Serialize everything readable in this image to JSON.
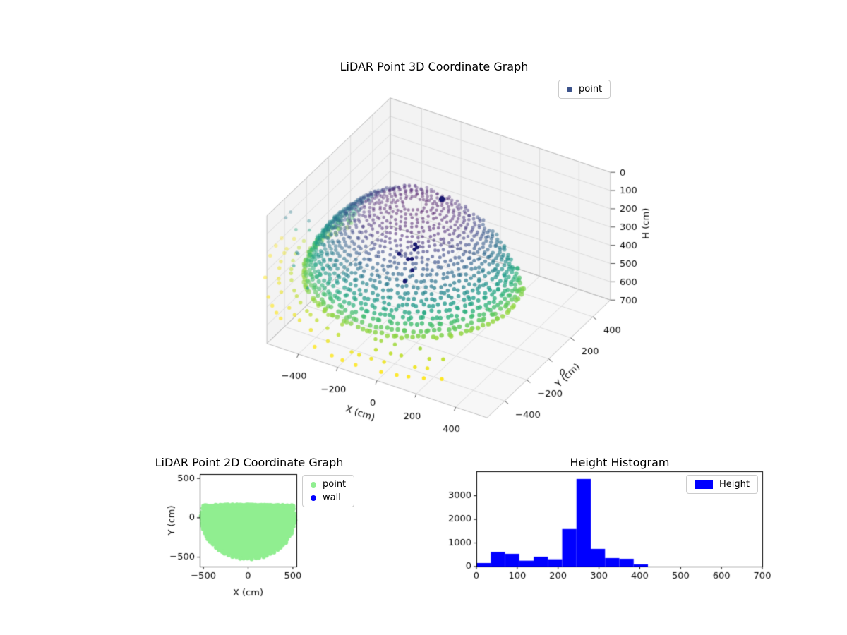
{
  "figure": {
    "background": "#ffffff",
    "colors": {
      "pane": "#f3f3f3",
      "pane_floor": "#f7f7f7",
      "grid": "#dcdcdc",
      "edge": "#bfbfbf",
      "tick": "#555555",
      "text": "#000000"
    }
  },
  "chart_data": [
    {
      "id": "lidar3d",
      "type": "scatter3d",
      "title": "LiDAR Point 3D Coordinate Graph",
      "xlabel": "X (cm)",
      "ylabel": "Y (cm)",
      "zlabel": "H (cm)",
      "xlim": [
        -560,
        560
      ],
      "ylim": [
        -560,
        560
      ],
      "zlim": [
        0,
        700
      ],
      "zaxis_inverted": true,
      "xticks": [
        -400,
        -200,
        0,
        200,
        400
      ],
      "yticks": [
        -400,
        -200,
        0,
        200,
        400
      ],
      "zticks": [
        0,
        100,
        200,
        300,
        400,
        500,
        600,
        700
      ],
      "legend": [
        {
          "label": "point",
          "color": "#3b528b"
        }
      ],
      "colormap": "viridis",
      "color_scale_h": [
        20,
        480
      ],
      "dome": {
        "center": [
          -80,
          -80
        ],
        "radius": 520,
        "apex_h": 35,
        "rim_h": 435,
        "phi_min_deg": 6,
        "phi_max_deg": 70,
        "rings": 24,
        "points_per_ring_max": 130,
        "y_cut": 120
      },
      "floor_arcs": {
        "radii": [
          600,
          655,
          710,
          770
        ],
        "h_start": 445,
        "az_range_deg": [
          185,
          300
        ],
        "step_deg": 5
      },
      "outliers": 9,
      "wall_cluster": {
        "color": "#191970",
        "count": 7,
        "center": [
          -40,
          -140
        ],
        "h_range": [
          200,
          330
        ]
      }
    },
    {
      "id": "lidar2d",
      "type": "scatter2d",
      "title": "LiDAR Point 2D Coordinate Graph",
      "xlabel": "X (cm)",
      "ylabel": "Y (cm)",
      "xlim": [
        -540,
        540
      ],
      "ylim": [
        -620,
        555
      ],
      "xticks": [
        -500,
        0,
        500
      ],
      "yticks": [
        -500,
        0,
        500
      ],
      "legend": [
        {
          "label": "point",
          "color": "#90ee90"
        },
        {
          "label": "wall",
          "color": "#0000ff"
        }
      ],
      "footprint": {
        "radius": 520,
        "chord_y": 150,
        "color": "#90ee90"
      }
    },
    {
      "id": "histogram",
      "type": "bar",
      "title": "Height Histogram",
      "legend": [
        {
          "label": "Height",
          "color": "#0000ff"
        }
      ],
      "xlim": [
        0,
        700
      ],
      "ylim": [
        0,
        4036
      ],
      "xticks": [
        0,
        100,
        200,
        300,
        400,
        500,
        600,
        700
      ],
      "yticks": [
        0,
        1000,
        2000,
        3000
      ],
      "bin_start": 0,
      "bin_width": 35,
      "values": [
        150,
        620,
        540,
        250,
        420,
        310,
        1590,
        3710,
        750,
        360,
        330,
        90
      ],
      "bar_color": "#0000ff"
    }
  ]
}
